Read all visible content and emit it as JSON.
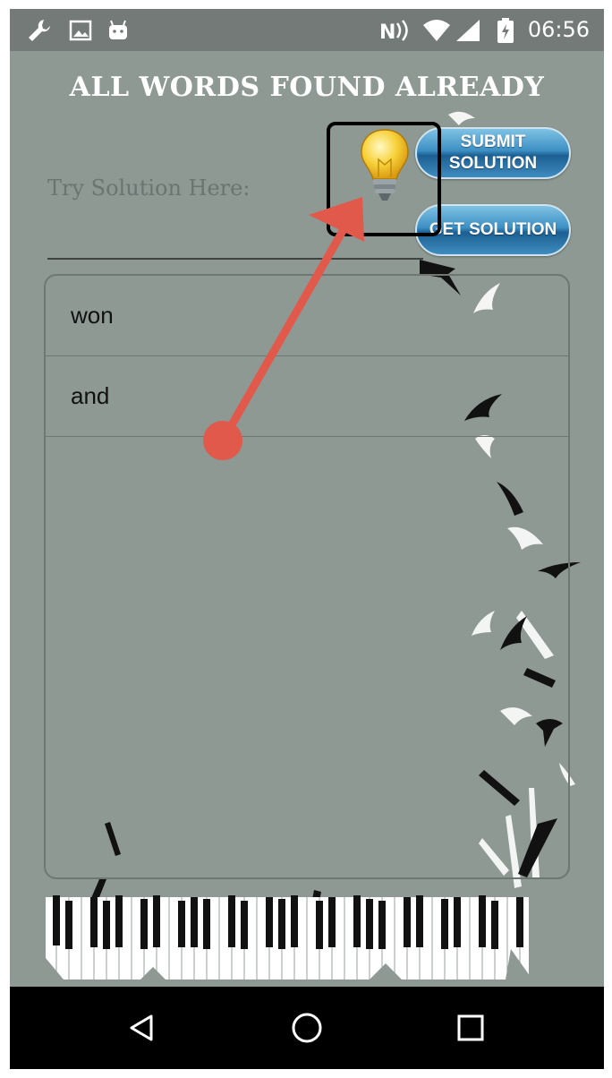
{
  "status_bar": {
    "time": "06:56",
    "left_icons": [
      "wrench-icon",
      "image-icon",
      "android-icon"
    ],
    "right_icons": [
      "nfc-icon",
      "wifi-icon",
      "cell-signal-icon",
      "battery-icon"
    ]
  },
  "app": {
    "title": "ALL WORDS FOUND ALREADY",
    "solution_label": "Try Solution Here:",
    "solution_input": {
      "value": "",
      "placeholder": ""
    },
    "hint_icon": "lightbulb-icon",
    "submit_button": {
      "line1": "SUBMIT",
      "line2": "SOLUTION"
    },
    "get_button": {
      "label": "GET SOLUTION"
    },
    "found_words": [
      "won",
      "and"
    ]
  },
  "annotation": {
    "type": "arrow-to-box",
    "color": "#e0594b",
    "box_color": "#000000"
  },
  "nav_bar": {
    "buttons": [
      "back-icon",
      "home-icon",
      "recents-icon"
    ]
  },
  "colors": {
    "background": "#8e9993",
    "status_bar": "#747a77",
    "button_blue": "#2f77ad",
    "nav_bar": "#000000"
  }
}
